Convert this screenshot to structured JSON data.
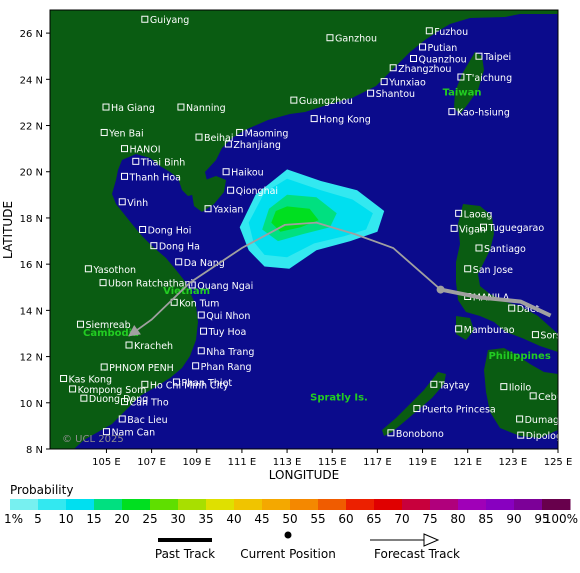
{
  "map": {
    "y_axis_label": "LATITUDE",
    "x_axis_label": "LONGITUDE",
    "lat_ticks": [
      "26 N",
      "24 N",
      "22 N",
      "20 N",
      "18 N",
      "16 N",
      "14 N",
      "12 N",
      "10 N",
      "8 N"
    ],
    "lon_ticks": [
      "105 E",
      "107 E",
      "109 E",
      "111 E",
      "113 E",
      "115 E",
      "117 E",
      "119 E",
      "121 E",
      "123 E",
      "125 E"
    ],
    "extent": {
      "lon_min": 102.5,
      "lon_max": 125.0,
      "lat_min": 8.0,
      "lat_max": 27.0
    },
    "copyright": "© UCL 2025",
    "colors": {
      "ocean": "#0b0b8c",
      "land": "#0a5c12",
      "track": "#a0a0a0",
      "region_label": "#22cc22"
    },
    "cities": [
      {
        "name": "Guiyang",
        "lon": 106.7,
        "lat": 26.6
      },
      {
        "name": "Ganzhou",
        "lon": 114.9,
        "lat": 25.8
      },
      {
        "name": "Fuzhou",
        "lon": 119.3,
        "lat": 26.1
      },
      {
        "name": "Putian",
        "lon": 119.0,
        "lat": 25.4
      },
      {
        "name": "Quanzhou",
        "lon": 118.6,
        "lat": 24.9
      },
      {
        "name": "Zhangzhou",
        "lon": 117.7,
        "lat": 24.5
      },
      {
        "name": "Yunxiao",
        "lon": 117.3,
        "lat": 23.9
      },
      {
        "name": "Taipei",
        "lon": 121.5,
        "lat": 25.0
      },
      {
        "name": "T'aichung",
        "lon": 120.7,
        "lat": 24.1
      },
      {
        "name": "Kao-hsiung",
        "lon": 120.3,
        "lat": 22.6
      },
      {
        "name": "Guangzhou",
        "lon": 113.3,
        "lat": 23.1
      },
      {
        "name": "Shantou",
        "lon": 116.7,
        "lat": 23.4
      },
      {
        "name": "Hong Kong",
        "lon": 114.2,
        "lat": 22.3
      },
      {
        "name": "Ha Giang",
        "lon": 104.98,
        "lat": 22.8
      },
      {
        "name": "Nanning",
        "lon": 108.3,
        "lat": 22.8
      },
      {
        "name": "Yen Bai",
        "lon": 104.9,
        "lat": 21.7
      },
      {
        "name": "Maoming",
        "lon": 110.9,
        "lat": 21.7
      },
      {
        "name": "Beihai",
        "lon": 109.1,
        "lat": 21.5
      },
      {
        "name": "HANOI",
        "lon": 105.8,
        "lat": 21.0
      },
      {
        "name": "Zhanjiang",
        "lon": 110.4,
        "lat": 21.2
      },
      {
        "name": "Thai Binh",
        "lon": 106.3,
        "lat": 20.45
      },
      {
        "name": "Thanh Hoa",
        "lon": 105.8,
        "lat": 19.8
      },
      {
        "name": "Haikou",
        "lon": 110.3,
        "lat": 20.0
      },
      {
        "name": "Qionghai",
        "lon": 110.5,
        "lat": 19.2
      },
      {
        "name": "Vinh",
        "lon": 105.7,
        "lat": 18.7
      },
      {
        "name": "Yaxian",
        "lon": 109.5,
        "lat": 18.4
      },
      {
        "name": "Dong Hoi",
        "lon": 106.6,
        "lat": 17.5
      },
      {
        "name": "Dong Ha",
        "lon": 107.1,
        "lat": 16.8
      },
      {
        "name": "Da Nang",
        "lon": 108.2,
        "lat": 16.1
      },
      {
        "name": "Yasothon",
        "lon": 104.2,
        "lat": 15.8
      },
      {
        "name": "Ubon Ratchathani",
        "lon": 104.85,
        "lat": 15.2
      },
      {
        "name": "Quang Ngai",
        "lon": 108.8,
        "lat": 15.1
      },
      {
        "name": "Kon Tum",
        "lon": 108.0,
        "lat": 14.35
      },
      {
        "name": "Qui Nhon",
        "lon": 109.2,
        "lat": 13.8
      },
      {
        "name": "Siemreab",
        "lon": 103.85,
        "lat": 13.4
      },
      {
        "name": "Tuy Hoa",
        "lon": 109.3,
        "lat": 13.1
      },
      {
        "name": "Kracheh",
        "lon": 106.0,
        "lat": 12.5
      },
      {
        "name": "Nha Trang",
        "lon": 109.2,
        "lat": 12.25
      },
      {
        "name": "PHNOM PENH",
        "lon": 104.9,
        "lat": 11.55
      },
      {
        "name": "Phan Rang",
        "lon": 108.95,
        "lat": 11.6
      },
      {
        "name": "Kas Kong",
        "lon": 103.1,
        "lat": 11.05
      },
      {
        "name": "Phan Thiet",
        "lon": 108.1,
        "lat": 10.9
      },
      {
        "name": "Kompong Som",
        "lon": 103.5,
        "lat": 10.6
      },
      {
        "name": "Ho Chi Minh City",
        "lon": 106.7,
        "lat": 10.8
      },
      {
        "name": "Duong Dong",
        "lon": 104.0,
        "lat": 10.2
      },
      {
        "name": "Can Tho",
        "lon": 105.8,
        "lat": 10.05
      },
      {
        "name": "Bac Lieu",
        "lon": 105.7,
        "lat": 9.3
      },
      {
        "name": "Nam Can",
        "lon": 105.0,
        "lat": 8.75
      },
      {
        "name": "Laoag",
        "lon": 120.6,
        "lat": 18.2
      },
      {
        "name": "Tuguegarao",
        "lon": 121.7,
        "lat": 17.6
      },
      {
        "name": "Vigan",
        "lon": 120.4,
        "lat": 17.55
      },
      {
        "name": "Santiago",
        "lon": 121.5,
        "lat": 16.7
      },
      {
        "name": "San Jose",
        "lon": 121.0,
        "lat": 15.8
      },
      {
        "name": "MANILA",
        "lon": 121.0,
        "lat": 14.6
      },
      {
        "name": "Daet",
        "lon": 122.95,
        "lat": 14.1
      },
      {
        "name": "Mamburao",
        "lon": 120.6,
        "lat": 13.2
      },
      {
        "name": "Sorsogon",
        "lon": 124.0,
        "lat": 12.95
      },
      {
        "name": "Taytay",
        "lon": 119.5,
        "lat": 10.8
      },
      {
        "name": "Iloilo",
        "lon": 122.6,
        "lat": 10.7
      },
      {
        "name": "Cebu",
        "lon": 123.9,
        "lat": 10.3
      },
      {
        "name": "Puerto Princesa",
        "lon": 118.75,
        "lat": 9.75
      },
      {
        "name": "Dumaguete",
        "lon": 123.3,
        "lat": 9.3
      },
      {
        "name": "Bonobono",
        "lon": 117.6,
        "lat": 8.7
      },
      {
        "name": "Dipolog",
        "lon": 123.35,
        "lat": 8.6
      }
    ],
    "regions": [
      {
        "name": "Taiwan",
        "lon": 120.75,
        "lat": 23.3
      },
      {
        "name": "Vietnam",
        "lon": 108.55,
        "lat": 14.7
      },
      {
        "name": "Cambodia",
        "lon": 105.2,
        "lat": 12.9
      },
      {
        "name": "Philippines",
        "lon": 123.3,
        "lat": 11.9
      },
      {
        "name": "Spratly Is.",
        "lon": 115.3,
        "lat": 10.1
      }
    ]
  },
  "storm": {
    "track_style": "forecast",
    "track": [
      {
        "lon": 119.8,
        "lat": 14.9
      },
      {
        "lon": 117.7,
        "lat": 16.7
      },
      {
        "lon": 116.0,
        "lat": 17.3
      },
      {
        "lon": 114.3,
        "lat": 17.8
      },
      {
        "lon": 112.9,
        "lat": 17.7
      },
      {
        "lon": 111.0,
        "lat": 16.7
      },
      {
        "lon": 108.7,
        "lat": 15.2
      },
      {
        "lon": 107.0,
        "lat": 13.6
      },
      {
        "lon": 106.0,
        "lat": 12.9
      }
    ],
    "current_position": {
      "lon": 119.8,
      "lat": 14.9
    },
    "probability_zones": [
      {
        "level_pct": 5,
        "points": [
          [
            113.0,
            20.1
          ],
          [
            114.5,
            19.6
          ],
          [
            116.1,
            19.2
          ],
          [
            117.3,
            18.3
          ],
          [
            117.0,
            17.4
          ],
          [
            115.8,
            17.0
          ],
          [
            114.3,
            16.6
          ],
          [
            113.1,
            15.8
          ],
          [
            112.0,
            15.9
          ],
          [
            111.3,
            16.6
          ],
          [
            110.9,
            17.6
          ],
          [
            111.6,
            19.0
          ]
        ]
      },
      {
        "level_pct": 10,
        "points": [
          [
            113.0,
            19.7
          ],
          [
            114.5,
            19.2
          ],
          [
            115.9,
            18.8
          ],
          [
            116.8,
            18.2
          ],
          [
            116.5,
            17.5
          ],
          [
            115.5,
            17.2
          ],
          [
            114.2,
            16.9
          ],
          [
            113.0,
            16.3
          ],
          [
            112.0,
            16.4
          ],
          [
            111.5,
            17.0
          ],
          [
            111.3,
            17.8
          ],
          [
            112.0,
            19.1
          ]
        ]
      },
      {
        "level_pct": 15,
        "points": [
          [
            113.0,
            19.0
          ],
          [
            114.3,
            18.9
          ],
          [
            115.2,
            18.2
          ],
          [
            114.9,
            17.6
          ],
          [
            113.7,
            17.3
          ],
          [
            112.6,
            17.0
          ],
          [
            111.9,
            17.5
          ],
          [
            112.2,
            18.4
          ]
        ]
      },
      {
        "level_pct": 20,
        "points": [
          [
            113.0,
            18.5
          ],
          [
            114.0,
            18.4
          ],
          [
            114.4,
            17.9
          ],
          [
            113.6,
            17.6
          ],
          [
            112.7,
            17.4
          ],
          [
            112.3,
            17.8
          ],
          [
            112.5,
            18.3
          ]
        ]
      }
    ]
  },
  "legend": {
    "title": "Probability",
    "scale_labels": [
      "1%",
      "5",
      "10",
      "15",
      "20",
      "25",
      "30",
      "35",
      "40",
      "45",
      "50",
      "55",
      "60",
      "65",
      "70",
      "75",
      "80",
      "85",
      "90",
      "95",
      "100%"
    ],
    "scale_colors": [
      "#77f0f0",
      "#33e8f0",
      "#00dff0",
      "#00e080",
      "#00df20",
      "#5fdf00",
      "#a8df00",
      "#dfe000",
      "#f0c400",
      "#f4a800",
      "#f48800",
      "#f05c00",
      "#ec2000",
      "#e00000",
      "#c8003c",
      "#b0007c",
      "#a000b8",
      "#8800c0",
      "#7c0098",
      "#68004c"
    ],
    "keys": {
      "past": "Past Track",
      "current": "Current Position",
      "forecast": "Forecast Track"
    }
  }
}
